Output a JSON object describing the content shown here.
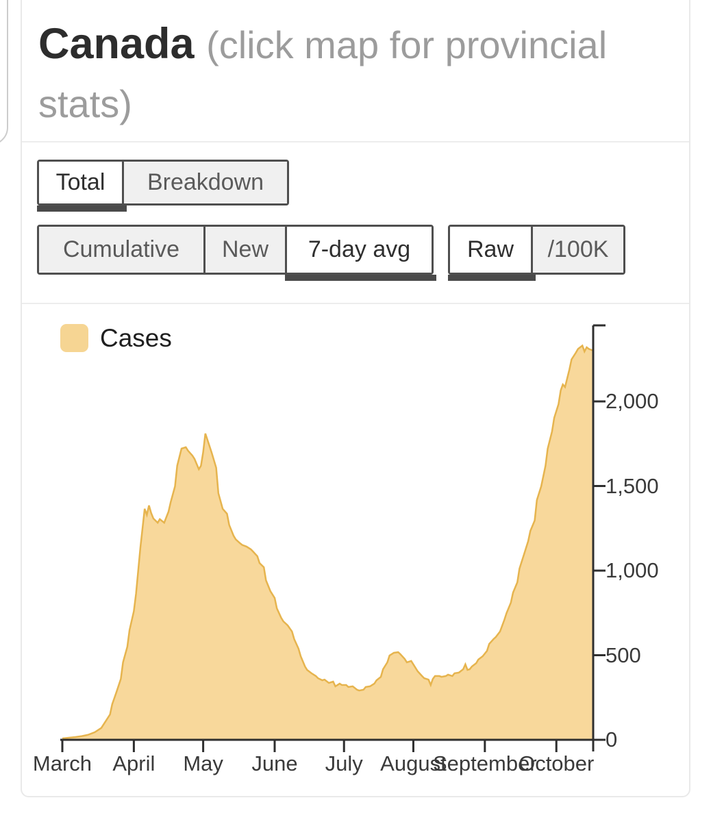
{
  "header": {
    "title": "Canada",
    "subtitle": "(click map for provincial stats)"
  },
  "tabs": {
    "view": [
      {
        "label": "Total",
        "active": true
      },
      {
        "label": "Breakdown",
        "active": false
      }
    ]
  },
  "controls": {
    "mode": [
      {
        "label": "Cumulative",
        "active": false
      },
      {
        "label": "New",
        "active": false
      },
      {
        "label": "7-day avg",
        "active": true
      }
    ],
    "scale": [
      {
        "label": "Raw",
        "active": true
      },
      {
        "label": "/100K",
        "active": false
      }
    ]
  },
  "legend": {
    "label": "Cases",
    "swatch_color": "#f6d593"
  },
  "colors": {
    "area_fill": "#f8d89b",
    "area_stroke": "#e6b44e",
    "axis": "#2f2f2f",
    "tick_text": "#3a3a3a"
  },
  "chart_data": {
    "type": "area",
    "title": "",
    "xlabel": "",
    "ylabel": "",
    "x_unit": "days since March 1",
    "x_max": 245,
    "ylim": [
      0,
      2450
    ],
    "grid": false,
    "legend_position": "top-left",
    "y_axis_side": "right",
    "y_ticks": [
      0,
      500,
      1000,
      1500,
      2000
    ],
    "y_tick_labels": [
      "0",
      "500",
      "1,000",
      "1,500",
      "2,000"
    ],
    "x_ticks": [
      {
        "day": 0,
        "label": "March"
      },
      {
        "day": 33,
        "label": "April"
      },
      {
        "day": 65,
        "label": "May"
      },
      {
        "day": 98,
        "label": "June"
      },
      {
        "day": 130,
        "label": "July"
      },
      {
        "day": 162,
        "label": "August"
      },
      {
        "day": 195,
        "label": "September"
      },
      {
        "day": 228,
        "label": "October"
      }
    ],
    "series": [
      {
        "name": "Cases",
        "points": [
          [
            0,
            8
          ],
          [
            3,
            12
          ],
          [
            6,
            16
          ],
          [
            9,
            22
          ],
          [
            12,
            30
          ],
          [
            15,
            45
          ],
          [
            18,
            70
          ],
          [
            20,
            110
          ],
          [
            22,
            150
          ],
          [
            23,
            210
          ],
          [
            25,
            283
          ],
          [
            27,
            360
          ],
          [
            28,
            458
          ],
          [
            30,
            550
          ],
          [
            31,
            648
          ],
          [
            33,
            760
          ],
          [
            34,
            863
          ],
          [
            36,
            1134
          ],
          [
            38,
            1365
          ],
          [
            39,
            1330
          ],
          [
            40,
            1385
          ],
          [
            41,
            1340
          ],
          [
            42,
            1308
          ],
          [
            44,
            1283
          ],
          [
            45,
            1304
          ],
          [
            47,
            1283
          ],
          [
            49,
            1348
          ],
          [
            50,
            1405
          ],
          [
            52,
            1498
          ],
          [
            53,
            1620
          ],
          [
            55,
            1721
          ],
          [
            57,
            1729
          ],
          [
            58,
            1709
          ],
          [
            60,
            1680
          ],
          [
            61,
            1660
          ],
          [
            63,
            1599
          ],
          [
            64,
            1620
          ],
          [
            65,
            1700
          ],
          [
            66,
            1810
          ],
          [
            68,
            1733
          ],
          [
            69,
            1693
          ],
          [
            71,
            1608
          ],
          [
            72,
            1458
          ],
          [
            74,
            1365
          ],
          [
            76,
            1336
          ],
          [
            77,
            1270
          ],
          [
            79,
            1207
          ],
          [
            80,
            1185
          ],
          [
            82,
            1162
          ],
          [
            83,
            1152
          ],
          [
            85,
            1142
          ],
          [
            87,
            1126
          ],
          [
            88,
            1113
          ],
          [
            90,
            1085
          ],
          [
            91,
            1045
          ],
          [
            93,
            1020
          ],
          [
            94,
            943
          ],
          [
            96,
            879
          ],
          [
            98,
            838
          ],
          [
            99,
            777
          ],
          [
            101,
            721
          ],
          [
            102,
            700
          ],
          [
            104,
            676
          ],
          [
            106,
            640
          ],
          [
            107,
            595
          ],
          [
            109,
            539
          ],
          [
            110,
            494
          ],
          [
            112,
            433
          ],
          [
            113,
            413
          ],
          [
            115,
            393
          ],
          [
            117,
            377
          ],
          [
            118,
            364
          ],
          [
            120,
            352
          ],
          [
            121,
            356
          ],
          [
            123,
            336
          ],
          [
            125,
            344
          ],
          [
            126,
            316
          ],
          [
            128,
            332
          ],
          [
            129,
            324
          ],
          [
            131,
            324
          ],
          [
            132,
            312
          ],
          [
            134,
            316
          ],
          [
            136,
            296
          ],
          [
            137,
            291
          ],
          [
            139,
            296
          ],
          [
            140,
            312
          ],
          [
            142,
            316
          ],
          [
            144,
            332
          ],
          [
            145,
            352
          ],
          [
            147,
            372
          ],
          [
            148,
            417
          ],
          [
            150,
            458
          ],
          [
            151,
            498
          ],
          [
            153,
            514
          ],
          [
            155,
            518
          ],
          [
            156,
            506
          ],
          [
            158,
            478
          ],
          [
            159,
            458
          ],
          [
            161,
            466
          ],
          [
            162,
            446
          ],
          [
            164,
            405
          ],
          [
            166,
            377
          ],
          [
            167,
            364
          ],
          [
            169,
            356
          ],
          [
            170,
            324
          ],
          [
            171,
            360
          ],
          [
            172,
            377
          ],
          [
            174,
            377
          ],
          [
            175,
            372
          ],
          [
            177,
            377
          ],
          [
            178,
            385
          ],
          [
            180,
            377
          ],
          [
            181,
            393
          ],
          [
            183,
            397
          ],
          [
            185,
            417
          ],
          [
            186,
            446
          ],
          [
            187,
            413
          ],
          [
            188,
            417
          ],
          [
            189,
            433
          ],
          [
            191,
            453
          ],
          [
            192,
            474
          ],
          [
            194,
            494
          ],
          [
            196,
            526
          ],
          [
            197,
            567
          ],
          [
            199,
            595
          ],
          [
            200,
            607
          ],
          [
            202,
            640
          ],
          [
            204,
            709
          ],
          [
            205,
            749
          ],
          [
            207,
            810
          ],
          [
            208,
            870
          ],
          [
            210,
            931
          ],
          [
            211,
            1012
          ],
          [
            213,
            1093
          ],
          [
            215,
            1174
          ],
          [
            216,
            1235
          ],
          [
            218,
            1296
          ],
          [
            219,
            1417
          ],
          [
            221,
            1498
          ],
          [
            223,
            1620
          ],
          [
            224,
            1721
          ],
          [
            226,
            1822
          ],
          [
            227,
            1903
          ],
          [
            229,
            1984
          ],
          [
            230,
            2065
          ],
          [
            231,
            2100
          ],
          [
            232,
            2085
          ],
          [
            234,
            2187
          ],
          [
            235,
            2248
          ],
          [
            237,
            2288
          ],
          [
            238,
            2310
          ],
          [
            240,
            2330
          ],
          [
            241,
            2295
          ],
          [
            242,
            2320
          ],
          [
            243,
            2310
          ],
          [
            245,
            2300
          ]
        ]
      }
    ]
  }
}
